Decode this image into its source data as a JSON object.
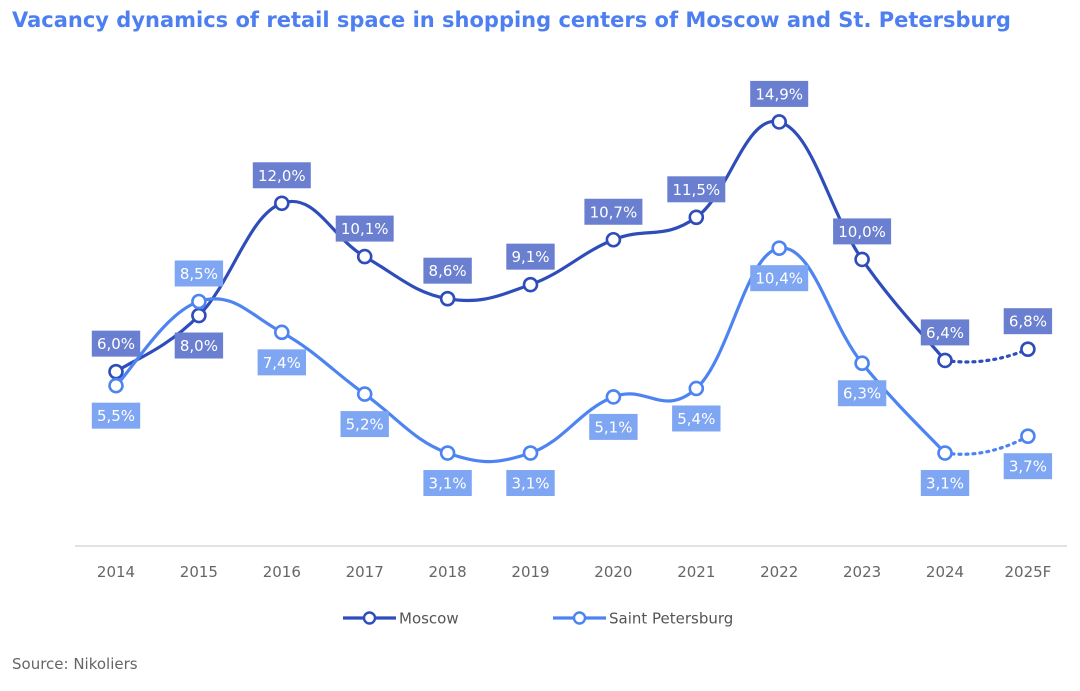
{
  "title": "Vacancy dynamics of retail space in shopping centers of Moscow and St. Petersburg",
  "source": "Source: Nikoliers",
  "colors": {
    "moscow": "#2e4dba",
    "moscow_label_bg": "#6a7fcf",
    "spb": "#4d84f2",
    "spb_label_bg": "#7fa6f3",
    "axis": "#d9d9d9"
  },
  "chart_data": {
    "type": "line",
    "categories": [
      "2014",
      "2015",
      "2016",
      "2017",
      "2018",
      "2019",
      "2020",
      "2021",
      "2022",
      "2023",
      "2024",
      "2025F"
    ],
    "series": [
      {
        "name": "Moscow",
        "values": [
          6.0,
          8.0,
          12.0,
          10.1,
          8.6,
          9.1,
          10.7,
          11.5,
          14.9,
          10.0,
          6.4,
          6.8
        ],
        "labels": [
          "6,0%",
          "8,0%",
          "12,0%",
          "10,1%",
          "8,6%",
          "9,1%",
          "10,7%",
          "11,5%",
          "14,9%",
          "10,0%",
          "6,4%",
          "6,8%"
        ],
        "forecast_from_index": 10
      },
      {
        "name": "Saint Petersburg",
        "values": [
          5.5,
          8.5,
          7.4,
          5.2,
          3.1,
          3.1,
          5.1,
          5.4,
          10.4,
          6.3,
          3.1,
          3.7
        ],
        "labels": [
          "5,5%",
          "8,5%",
          "7,4%",
          "5,2%",
          "3,1%",
          "3,1%",
          "5,1%",
          "5,4%",
          "10,4%",
          "6,3%",
          "3,1%",
          "3,7%"
        ],
        "forecast_from_index": 10
      }
    ],
    "grid": false,
    "legend_position": "bottom"
  }
}
